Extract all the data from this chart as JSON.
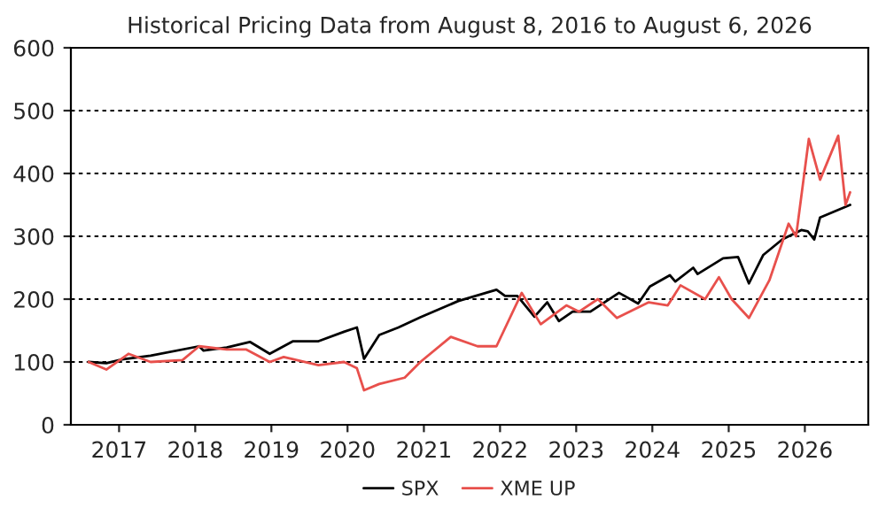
{
  "chart_data": {
    "type": "line",
    "title": "Historical Pricing Data from August 8, 2016 to August 6, 2026",
    "xlim": [
      "2016-05-15",
      "2026-11-01"
    ],
    "xticks": [
      "2017",
      "2018",
      "2019",
      "2020",
      "2021",
      "2022",
      "2023",
      "2024",
      "2025",
      "2026"
    ],
    "ylim": [
      0,
      600
    ],
    "yticks": [
      0,
      100,
      200,
      300,
      400,
      500,
      600
    ],
    "grid": "y",
    "legend": "bottom",
    "line_style": "solid",
    "series": [
      {
        "name": "SPX",
        "color": "#000000",
        "x": [
          "2016-08-08",
          "2016-11-01",
          "2017-01-15",
          "2017-06-01",
          "2018-01-20",
          "2018-02-10",
          "2018-06-01",
          "2018-09-20",
          "2018-12-24",
          "2019-04-15",
          "2019-08-15",
          "2019-12-15",
          "2020-02-15",
          "2020-03-20",
          "2020-06-01",
          "2020-09-01",
          "2020-12-15",
          "2021-06-15",
          "2021-12-15",
          "2022-01-25",
          "2022-03-25",
          "2022-06-15",
          "2022-08-15",
          "2022-10-10",
          "2022-12-15",
          "2023-03-10",
          "2023-07-25",
          "2023-10-25",
          "2023-12-20",
          "2024-03-25",
          "2024-04-20",
          "2024-07-15",
          "2024-08-05",
          "2024-12-05",
          "2025-02-15",
          "2025-04-08",
          "2025-06-15",
          "2025-09-15",
          "2025-12-15",
          "2026-01-15",
          "2026-02-15",
          "2026-03-15",
          "2026-08-06"
        ],
        "values": [
          100,
          98,
          104,
          110,
          125,
          118,
          123,
          132,
          113,
          133,
          133,
          148,
          155,
          105,
          143,
          155,
          171,
          197,
          215,
          205,
          205,
          172,
          195,
          165,
          180,
          180,
          210,
          193,
          220,
          238,
          228,
          250,
          240,
          265,
          267,
          225,
          270,
          295,
          310,
          308,
          295,
          330,
          350
        ]
      },
      {
        "name": "XME UP",
        "color": "#e8504c",
        "x": [
          "2016-08-08",
          "2016-11-01",
          "2017-02-15",
          "2017-06-01",
          "2017-11-01",
          "2018-01-20",
          "2018-06-01",
          "2018-09-01",
          "2018-12-24",
          "2019-03-01",
          "2019-08-15",
          "2019-12-15",
          "2020-02-15",
          "2020-03-20",
          "2020-06-01",
          "2020-10-01",
          "2020-12-15",
          "2021-05-10",
          "2021-09-15",
          "2021-12-15",
          "2022-04-15",
          "2022-07-15",
          "2022-11-15",
          "2023-01-15",
          "2023-04-15",
          "2023-07-15",
          "2023-12-15",
          "2024-03-15",
          "2024-05-15",
          "2024-09-10",
          "2024-11-15",
          "2025-01-15",
          "2025-04-08",
          "2025-07-15",
          "2025-10-15",
          "2025-11-20",
          "2026-01-20",
          "2026-03-15",
          "2026-06-10",
          "2026-07-15",
          "2026-08-06"
        ],
        "values": [
          100,
          88,
          113,
          100,
          103,
          125,
          120,
          120,
          100,
          108,
          95,
          100,
          90,
          55,
          65,
          75,
          100,
          140,
          125,
          125,
          210,
          160,
          190,
          180,
          200,
          170,
          195,
          190,
          222,
          200,
          235,
          200,
          170,
          230,
          320,
          300,
          455,
          390,
          460,
          350,
          370
        ]
      }
    ]
  }
}
